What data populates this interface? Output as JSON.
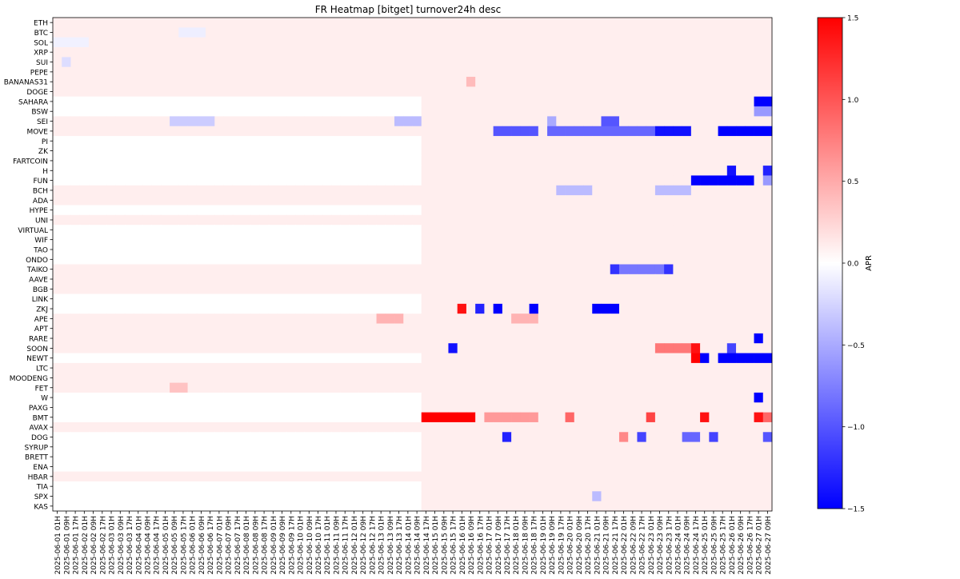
{
  "chart_data": {
    "type": "heatmap",
    "title": "FR Heatmap [bitget] turnover24h desc",
    "colorbar": {
      "label": "APR",
      "min": -1.5,
      "max": 1.5,
      "ticks": [
        -1.5,
        -1.0,
        -0.5,
        0.0,
        0.5,
        1.0,
        1.5
      ],
      "tick_labels": [
        "−1.5",
        "−1.0",
        "−0.5",
        "0.0",
        "0.5",
        "1.0",
        "1.5"
      ],
      "colormap": "bwr",
      "low_color": "#0000ff",
      "mid_color": "#ffffff",
      "high_color": "#ff0000"
    },
    "y_categories": [
      "ETH",
      "BTC",
      "SOL",
      "XRP",
      "SUI",
      "PEPE",
      "BANANAS31",
      "DOGE",
      "SAHARA",
      "BSW",
      "SEI",
      "MOVE",
      "PI",
      "ZK",
      "FARTCOIN",
      "H",
      "FUN",
      "BCH",
      "ADA",
      "HYPE",
      "UNI",
      "VIRTUAL",
      "WIF",
      "TAO",
      "ONDO",
      "TAIKO",
      "AAVE",
      "BGB",
      "LINK",
      "ZKJ",
      "APE",
      "APT",
      "RARE",
      "SOON",
      "NEWT",
      "LTC",
      "MOODENG",
      "FET",
      "W",
      "PAXG",
      "BMT",
      "AVAX",
      "DOG",
      "SYRUP",
      "BRETT",
      "ENA",
      "HBAR",
      "TIA",
      "SPX",
      "KAS"
    ],
    "x_start": "2025-06-01 01H",
    "x_end": "2025-06-27 09H",
    "x_step_hours": 8,
    "x_count": 80,
    "baseline_value": 0.1,
    "low_series": [
      "SAHARA",
      "BSW",
      "PI",
      "ZK",
      "FARTCOIN",
      "H",
      "FUN",
      "HYPE",
      "VIRTUAL",
      "WIF",
      "TAO",
      "ONDO",
      "LINK",
      "ZKJ",
      "NEWT",
      "W",
      "PAXG",
      "BMT",
      "DOG",
      "SYRUP",
      "BRETT",
      "ENA",
      "TIA",
      "SPX",
      "KAS"
    ],
    "low_series_until": "2025-06-14 09H",
    "low_series_value": 0.0,
    "hotspots": [
      {
        "y": "BTC",
        "x_from": "2025-06-05 17H",
        "x_to": "2025-06-06 09H",
        "value": -0.1
      },
      {
        "y": "SOL",
        "x_from": "2025-06-01 01H",
        "x_to": "2025-06-02 01H",
        "value": -0.08
      },
      {
        "y": "SUI",
        "x_from": "2025-06-01 09H",
        "x_to": "2025-06-01 09H",
        "value": -0.2
      },
      {
        "y": "BANANAS31",
        "x_from": "2025-06-16 09H",
        "x_to": "2025-06-16 09H",
        "value": 0.4
      },
      {
        "y": "SAHARA",
        "x_from": "2025-06-27 01H",
        "x_to": "2025-06-27 09H",
        "value": -1.5
      },
      {
        "y": "BSW",
        "x_from": "2025-06-27 01H",
        "x_to": "2025-06-27 09H",
        "value": -0.6
      },
      {
        "y": "SEI",
        "x_from": "2025-06-05 09H",
        "x_to": "2025-06-06 17H",
        "value": -0.3
      },
      {
        "y": "SEI",
        "x_from": "2025-06-13 17H",
        "x_to": "2025-06-14 09H",
        "value": -0.4
      },
      {
        "y": "SEI",
        "x_from": "2025-06-19 09H",
        "x_to": "2025-06-19 09H",
        "value": -0.5
      },
      {
        "y": "SEI",
        "x_from": "2025-06-21 09H",
        "x_to": "2025-06-21 17H",
        "value": -1.0
      },
      {
        "y": "MOVE",
        "x_from": "2025-06-17 09H",
        "x_to": "2025-06-18 17H",
        "value": -1.0
      },
      {
        "y": "MOVE",
        "x_from": "2025-06-19 09H",
        "x_to": "2025-06-23 01H",
        "value": -0.9
      },
      {
        "y": "MOVE",
        "x_from": "2025-06-23 09H",
        "x_to": "2025-06-24 09H",
        "value": -1.4
      },
      {
        "y": "MOVE",
        "x_from": "2025-06-25 17H",
        "x_to": "2025-06-27 09H",
        "value": -1.5
      },
      {
        "y": "H",
        "x_from": "2025-06-26 01H",
        "x_to": "2025-06-26 01H",
        "value": -1.4
      },
      {
        "y": "H",
        "x_from": "2025-06-27 09H",
        "x_to": "2025-06-27 09H",
        "value": -1.3
      },
      {
        "y": "FUN",
        "x_from": "2025-06-24 17H",
        "x_to": "2025-06-26 17H",
        "value": -1.5
      },
      {
        "y": "FUN",
        "x_from": "2025-06-27 09H",
        "x_to": "2025-06-27 09H",
        "value": -0.6
      },
      {
        "y": "BCH",
        "x_from": "2025-06-19 17H",
        "x_to": "2025-06-20 17H",
        "value": -0.4
      },
      {
        "y": "BCH",
        "x_from": "2025-06-23 09H",
        "x_to": "2025-06-24 09H",
        "value": -0.4
      },
      {
        "y": "TAIKO",
        "x_from": "2025-06-21 17H",
        "x_to": "2025-06-23 17H",
        "value": -0.8
      },
      {
        "y": "TAIKO",
        "x_from": "2025-06-21 17H",
        "x_to": "2025-06-21 17H",
        "value": -1.2
      },
      {
        "y": "TAIKO",
        "x_from": "2025-06-23 17H",
        "x_to": "2025-06-23 17H",
        "value": -1.2
      },
      {
        "y": "ZKJ",
        "x_from": "2025-06-16 01H",
        "x_to": "2025-06-16 01H",
        "value": 1.4
      },
      {
        "y": "ZKJ",
        "x_from": "2025-06-16 17H",
        "x_to": "2025-06-16 17H",
        "value": -1.3
      },
      {
        "y": "ZKJ",
        "x_from": "2025-06-17 09H",
        "x_to": "2025-06-17 09H",
        "value": -1.5
      },
      {
        "y": "ZKJ",
        "x_from": "2025-06-18 17H",
        "x_to": "2025-06-18 17H",
        "value": -1.5
      },
      {
        "y": "ZKJ",
        "x_from": "2025-06-21 01H",
        "x_to": "2025-06-21 17H",
        "value": -1.5
      },
      {
        "y": "APE",
        "x_from": "2025-06-13 01H",
        "x_to": "2025-06-13 17H",
        "value": 0.45
      },
      {
        "y": "APE",
        "x_from": "2025-06-18 01H",
        "x_to": "2025-06-18 17H",
        "value": 0.45
      },
      {
        "y": "RARE",
        "x_from": "2025-06-27 01H",
        "x_to": "2025-06-27 01H",
        "value": -1.5
      },
      {
        "y": "SOON",
        "x_from": "2025-06-15 17H",
        "x_to": "2025-06-15 17H",
        "value": -1.4
      },
      {
        "y": "SOON",
        "x_from": "2025-06-23 09H",
        "x_to": "2025-06-24 09H",
        "value": 0.8
      },
      {
        "y": "SOON",
        "x_from": "2025-06-24 17H",
        "x_to": "2025-06-24 17H",
        "value": 1.4
      },
      {
        "y": "SOON",
        "x_from": "2025-06-26 01H",
        "x_to": "2025-06-26 01H",
        "value": -1.1
      },
      {
        "y": "NEWT",
        "x_from": "2025-06-24 17H",
        "x_to": "2025-06-24 17H",
        "value": 1.5
      },
      {
        "y": "NEWT",
        "x_from": "2025-06-25 01H",
        "x_to": "2025-06-25 01H",
        "value": -1.5
      },
      {
        "y": "NEWT",
        "x_from": "2025-06-25 17H",
        "x_to": "2025-06-27 09H",
        "value": -1.5
      },
      {
        "y": "FET",
        "x_from": "2025-06-05 09H",
        "x_to": "2025-06-05 17H",
        "value": 0.35
      },
      {
        "y": "W",
        "x_from": "2025-06-27 01H",
        "x_to": "2025-06-27 01H",
        "value": -1.5
      },
      {
        "y": "BMT",
        "x_from": "2025-06-14 17H",
        "x_to": "2025-06-15 17H",
        "value": 1.5
      },
      {
        "y": "BMT",
        "x_from": "2025-06-16 01H",
        "x_to": "2025-06-16 09H",
        "value": 1.5
      },
      {
        "y": "BMT",
        "x_from": "2025-06-17 01H",
        "x_to": "2025-06-18 17H",
        "value": 0.6
      },
      {
        "y": "BMT",
        "x_from": "2025-06-20 01H",
        "x_to": "2025-06-20 01H",
        "value": 0.9
      },
      {
        "y": "BMT",
        "x_from": "2025-06-23 01H",
        "x_to": "2025-06-23 01H",
        "value": 1.1
      },
      {
        "y": "BMT",
        "x_from": "2025-06-25 01H",
        "x_to": "2025-06-25 01H",
        "value": 1.4
      },
      {
        "y": "BMT",
        "x_from": "2025-06-27 01H",
        "x_to": "2025-06-27 01H",
        "value": 1.4
      },
      {
        "y": "BMT",
        "x_from": "2025-06-27 09H",
        "x_to": "2025-06-27 09H",
        "value": 0.9
      },
      {
        "y": "DOG",
        "x_from": "2025-06-17 17H",
        "x_to": "2025-06-17 17H",
        "value": -1.3
      },
      {
        "y": "DOG",
        "x_from": "2025-06-22 01H",
        "x_to": "2025-06-22 01H",
        "value": 0.7
      },
      {
        "y": "DOG",
        "x_from": "2025-06-22 17H",
        "x_to": "2025-06-22 17H",
        "value": -1.1
      },
      {
        "y": "DOG",
        "x_from": "2025-06-24 09H",
        "x_to": "2025-06-24 17H",
        "value": -0.9
      },
      {
        "y": "DOG",
        "x_from": "2025-06-25 09H",
        "x_to": "2025-06-25 09H",
        "value": -1.1
      },
      {
        "y": "DOG",
        "x_from": "2025-06-27 09H",
        "x_to": "2025-06-27 09H",
        "value": -1.0
      },
      {
        "y": "SPX",
        "x_from": "2025-06-21 01H",
        "x_to": "2025-06-21 01H",
        "value": -0.4
      }
    ]
  }
}
